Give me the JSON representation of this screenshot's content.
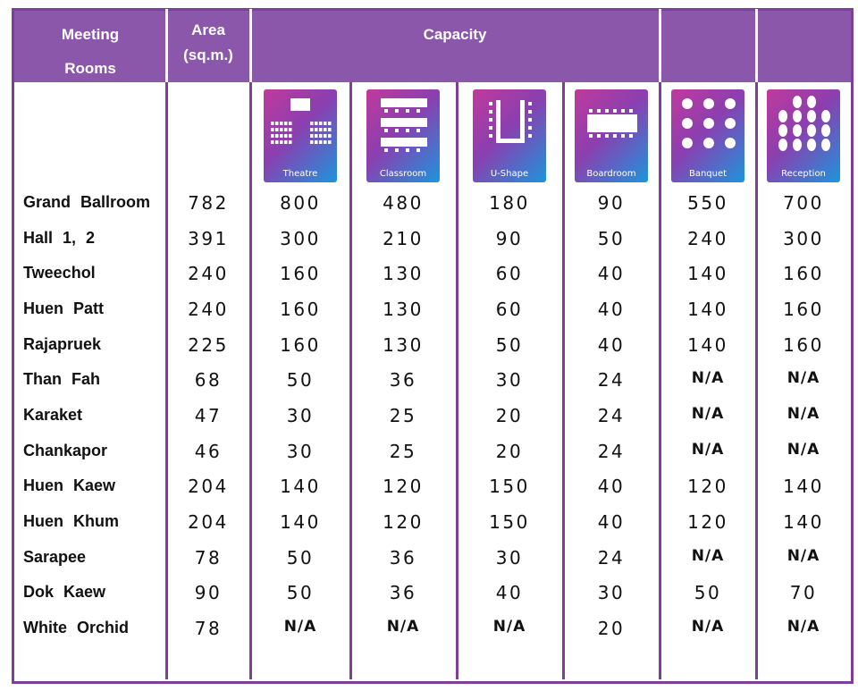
{
  "header": {
    "meeting_rooms": [
      "Meeting",
      "Rooms"
    ],
    "area": [
      "Area",
      "(sq.m.)"
    ],
    "capacity": "Capacity"
  },
  "layouts": [
    "Theatre",
    "Classroom",
    "U-Shape",
    "Boardroom",
    "Banquet",
    "Reception"
  ],
  "rows": [
    [
      "Grand Ballroom",
      782,
      800,
      480,
      180,
      90,
      550,
      700
    ],
    [
      "Hall 1, 2",
      391,
      300,
      210,
      90,
      50,
      240,
      300
    ],
    [
      "Tweechol",
      240,
      160,
      130,
      60,
      40,
      140,
      160
    ],
    [
      "Huen Patt",
      240,
      160,
      130,
      60,
      40,
      140,
      160
    ],
    [
      "Rajapruek",
      225,
      160,
      130,
      50,
      40,
      140,
      160
    ],
    [
      "Than Fah",
      68,
      50,
      36,
      30,
      24,
      "N/A",
      "N/A"
    ],
    [
      "Karaket",
      47,
      30,
      25,
      20,
      24,
      "N/A",
      "N/A"
    ],
    [
      "Chankapor",
      46,
      30,
      25,
      20,
      24,
      "N/A",
      "N/A"
    ],
    [
      "Huen Kaew",
      204,
      140,
      120,
      150,
      40,
      120,
      140
    ],
    [
      "Huen Khum",
      204,
      140,
      120,
      150,
      40,
      120,
      140
    ],
    [
      "Sarapee",
      78,
      50,
      36,
      30,
      24,
      "N/A",
      "N/A"
    ],
    [
      "Dok Kaew",
      90,
      50,
      36,
      40,
      30,
      50,
      70
    ],
    [
      "White Orchid",
      78,
      "N/A",
      "N/A",
      "N/A",
      20,
      "N/A",
      "N/A"
    ]
  ]
}
